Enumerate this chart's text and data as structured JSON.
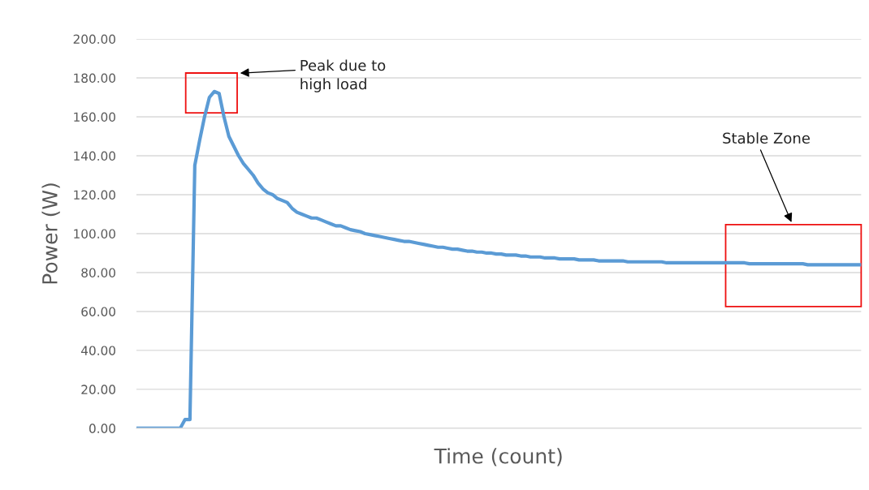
{
  "chart_data": {
    "type": "line",
    "xlabel": "Time (count)",
    "ylabel": "Power (W)",
    "categories": [
      null,
      null,
      null,
      null,
      null,
      null,
      null,
      null,
      null,
      null,
      null,
      null,
      null,
      null,
      null,
      null,
      null,
      null,
      null,
      null,
      null,
      null,
      null,
      null,
      null,
      null,
      null,
      null,
      null,
      null,
      null,
      null,
      null,
      null,
      null,
      null,
      null,
      null,
      null,
      null,
      null,
      null,
      null,
      null,
      null,
      null,
      null,
      null,
      null,
      null,
      null,
      null,
      null,
      null,
      null,
      null,
      null,
      null,
      null,
      null,
      null,
      null,
      null,
      null,
      null,
      null,
      null,
      null,
      null,
      null,
      null,
      null,
      null,
      null,
      null,
      null,
      null,
      null,
      null,
      null,
      null,
      null,
      null,
      null,
      null,
      null,
      null,
      null,
      null,
      null,
      null,
      null,
      null,
      null,
      null,
      null,
      null,
      null,
      null,
      null,
      null,
      null,
      null,
      null,
      null,
      null,
      null,
      null,
      null,
      null,
      null,
      null,
      null,
      null,
      null,
      null,
      null,
      null,
      null,
      null,
      null,
      null,
      null,
      null,
      null,
      null,
      null,
      null,
      null,
      null,
      null,
      null,
      null,
      null,
      null,
      null,
      null,
      null,
      null,
      null,
      null,
      null,
      null,
      null,
      null,
      null,
      null,
      null,
      null,
      null
    ],
    "series": [
      {
        "color": "#5b9bd5",
        "values": [
          0,
          0,
          0,
          0,
          0,
          0,
          0,
          0,
          0,
          0,
          4.5,
          4.5,
          135,
          148,
          160,
          170,
          173,
          172,
          160,
          150,
          145,
          140,
          136,
          133,
          130,
          126,
          123,
          121,
          120,
          118,
          117,
          116,
          113,
          111,
          110,
          109,
          108,
          108,
          107,
          106,
          105,
          104,
          104,
          103,
          102,
          101.5,
          101,
          100,
          99.5,
          99,
          98.5,
          98,
          97.5,
          97,
          96.5,
          96,
          96,
          95.5,
          95,
          94.5,
          94,
          93.5,
          93,
          93,
          92.5,
          92,
          92,
          91.5,
          91,
          91,
          90.5,
          90.5,
          90,
          90,
          89.5,
          89.5,
          89,
          89,
          89,
          88.5,
          88.5,
          88,
          88,
          88,
          87.5,
          87.5,
          87.5,
          87,
          87,
          87,
          87,
          86.5,
          86.5,
          86.5,
          86.5,
          86,
          86,
          86,
          86,
          86,
          86,
          85.5,
          85.5,
          85.5,
          85.5,
          85.5,
          85.5,
          85.5,
          85.5,
          85,
          85,
          85,
          85,
          85,
          85,
          85,
          85,
          85,
          85,
          85,
          85,
          85,
          85,
          85,
          85,
          85,
          84.5,
          84.5,
          84.5,
          84.5,
          84.5,
          84.5,
          84.5,
          84.5,
          84.5,
          84.5,
          84.5,
          84.5,
          84,
          84,
          84,
          84,
          84,
          84,
          84,
          84,
          84,
          84,
          84,
          84
        ]
      }
    ],
    "ylim": [
      0,
      200
    ],
    "yticks": [
      {
        "value": 0,
        "label": "0.00"
      },
      {
        "value": 20,
        "label": "20.00"
      },
      {
        "value": 40,
        "label": "40.00"
      },
      {
        "value": 60,
        "label": "60.00"
      },
      {
        "value": 80,
        "label": "80.00"
      },
      {
        "value": 100,
        "label": "100.00"
      },
      {
        "value": 120,
        "label": "120.00"
      },
      {
        "value": 140,
        "label": "140.00"
      },
      {
        "value": 160,
        "label": "160.00"
      },
      {
        "value": 180,
        "label": "180.00"
      },
      {
        "value": 200,
        "label": "200.00"
      }
    ],
    "grid": "y",
    "marker": "none",
    "line_style": "solid",
    "annotations": [
      "Peak due to\nhigh load",
      "Stable Zone"
    ]
  }
}
